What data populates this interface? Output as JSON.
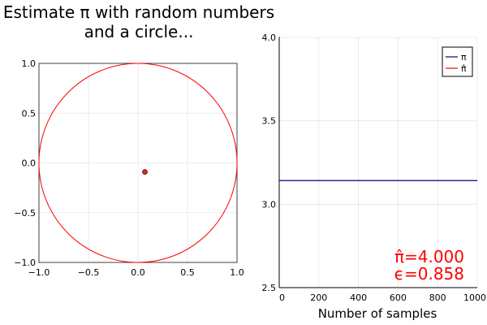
{
  "chart_data": [
    {
      "type": "scatter",
      "title_lines": [
        "Estimate π with random numbers",
        "and a circle..."
      ],
      "xlim": [
        -1.0,
        1.0
      ],
      "ylim": [
        -1.0,
        1.0
      ],
      "x_ticks": [
        -1.0,
        -0.5,
        0.0,
        0.5,
        1.0
      ],
      "x_tick_labels": [
        "−1.0",
        "−0.5",
        "0.0",
        "0.5",
        "1.0"
      ],
      "y_ticks": [
        -1.0,
        -0.5,
        0.0,
        0.5,
        1.0
      ],
      "y_tick_labels": [
        "−1.0",
        "−0.5",
        "0.0",
        "0.5",
        "1.0"
      ],
      "grid": true,
      "circle": {
        "center": [
          0.0,
          0.0
        ],
        "radius": 1.0,
        "color": "#ff0000"
      },
      "square": {
        "x": [
          -1.0,
          1.0
        ],
        "y": [
          -1.0,
          1.0
        ],
        "color": "#404040"
      },
      "points": [
        {
          "x": 0.07,
          "y": -0.09,
          "color": "#e0211b"
        }
      ]
    },
    {
      "type": "line",
      "xlabel": "Number of samples",
      "xlim": [
        0,
        1000
      ],
      "ylim": [
        2.5,
        4.0
      ],
      "x_ticks": [
        0,
        200,
        400,
        600,
        800,
        1000
      ],
      "x_tick_labels": [
        "0",
        "200",
        "400",
        "600",
        "800",
        "1000"
      ],
      "y_ticks": [
        2.5,
        3.0,
        3.5,
        4.0
      ],
      "y_tick_labels": [
        "2.5",
        "3.0",
        "3.5",
        "4.0"
      ],
      "grid": true,
      "legend_position": "top-right",
      "series": [
        {
          "name": "π",
          "color": "#000080",
          "x": [
            0,
            1000
          ],
          "y": [
            3.14159,
            3.14159
          ]
        },
        {
          "name": "π̂",
          "color": "#ff0000",
          "x": [
            1
          ],
          "y": [
            4.0
          ]
        }
      ],
      "annotations": [
        "π̂=4.000",
        "ϵ=0.858"
      ],
      "annotation_color": "#ff0000"
    }
  ]
}
